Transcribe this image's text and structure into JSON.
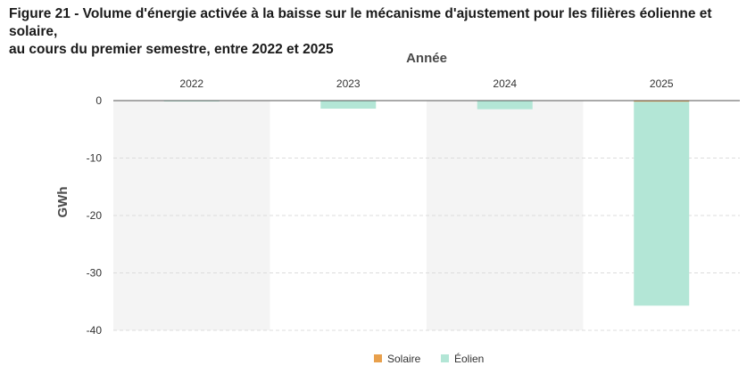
{
  "title": {
    "line1": "Figure 21 - Volume d'énergie activée à la baisse sur le mécanisme d'ajustement pour les filières éolienne et solaire,",
    "line2": "au cours du premier semestre, entre 2022 et 2025"
  },
  "chart_data": {
    "type": "bar",
    "categories": [
      "2022",
      "2023",
      "2024",
      "2025"
    ],
    "xlabel": "Année",
    "ylabel": "GWh",
    "ylim": [
      -40,
      0
    ],
    "yticks": [
      0,
      -10,
      -20,
      -30,
      -40
    ],
    "x_axis_position": "top",
    "grid": true,
    "legend_position": "bottom",
    "stacked": true,
    "series": [
      {
        "name": "Solaire",
        "color": "#e8a04c",
        "values": [
          0,
          0,
          0,
          -0.2
        ]
      },
      {
        "name": "Éolien",
        "color": "#b3e6d6",
        "values": [
          -0.1,
          -1.4,
          -1.5,
          -35.5
        ]
      }
    ],
    "band_color": "#f4f4f4"
  }
}
